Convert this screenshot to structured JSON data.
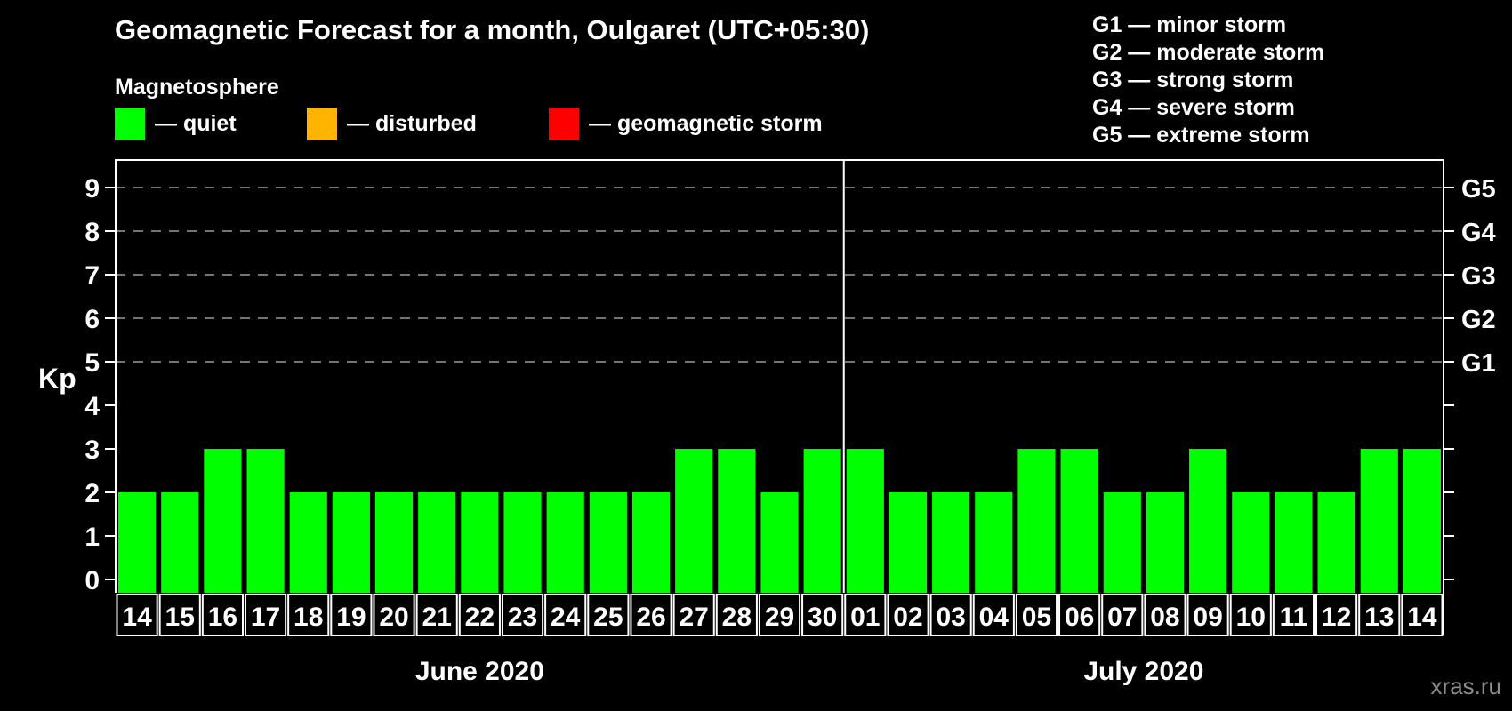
{
  "title": "Geomagnetic Forecast for a month, Oulgaret (UTC+05:30)",
  "legend": {
    "heading": "Magnetosphere",
    "items": [
      {
        "key": "quiet",
        "label": "— quiet",
        "color": "#00ff00"
      },
      {
        "key": "disturbed",
        "label": "— disturbed",
        "color": "#ffb400"
      },
      {
        "key": "storm",
        "label": "— geomagnetic storm",
        "color": "#ff0000"
      }
    ]
  },
  "g_legend": {
    "items": [
      "G1 — minor storm",
      "G2 — moderate storm",
      "G3 — strong storm",
      "G4 — severe storm",
      "G5 — extreme storm"
    ]
  },
  "watermark": "xras.ru",
  "chart_data": {
    "type": "bar",
    "ylabel": "Kp",
    "ylim": [
      0,
      9.6
    ],
    "yticks": [
      0,
      1,
      2,
      3,
      4,
      5,
      6,
      7,
      8,
      9
    ],
    "gridlines_at": [
      5,
      6,
      7,
      8,
      9
    ],
    "grid_style": "dashed",
    "right_axis_labels": [
      {
        "value": 5,
        "label": "G1"
      },
      {
        "value": 6,
        "label": "G2"
      },
      {
        "value": 7,
        "label": "G3"
      },
      {
        "value": 8,
        "label": "G4"
      },
      {
        "value": 9,
        "label": "G5"
      }
    ],
    "series_status": "quiet",
    "bar_color": "#00ff00",
    "status_colors": {
      "quiet": "#00ff00",
      "disturbed": "#ffb400",
      "storm": "#ff0000"
    },
    "months": [
      {
        "label": "June 2020",
        "days": [
          "14",
          "15",
          "16",
          "17",
          "18",
          "19",
          "20",
          "21",
          "22",
          "23",
          "24",
          "25",
          "26",
          "27",
          "28",
          "29",
          "30"
        ],
        "values": [
          2,
          2,
          3,
          3,
          2,
          2,
          2,
          2,
          2,
          2,
          2,
          2,
          2,
          3,
          3,
          2,
          3
        ]
      },
      {
        "label": "July 2020",
        "days": [
          "01",
          "02",
          "03",
          "04",
          "05",
          "06",
          "07",
          "08",
          "09",
          "10",
          "11",
          "12",
          "13",
          "14"
        ],
        "values": [
          3,
          2,
          2,
          2,
          3,
          3,
          2,
          2,
          3,
          2,
          2,
          2,
          3,
          3
        ]
      }
    ]
  }
}
